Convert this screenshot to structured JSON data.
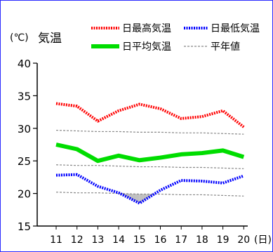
{
  "chart_data": {
    "type": "line",
    "ylabel_unit": "(℃)",
    "ylabel": "気温",
    "x": [
      "11",
      "12",
      "13",
      "14",
      "15",
      "16",
      "17",
      "18",
      "19",
      "20"
    ],
    "x_unit": "(日)",
    "ylim": [
      15,
      40
    ],
    "yticks": [
      "15",
      "20",
      "25",
      "30",
      "35",
      "40"
    ],
    "grid": false,
    "legend_position": "top",
    "series": [
      {
        "name": "日最高気温",
        "style": "dotted",
        "color": "#ff0000",
        "values": [
          33.8,
          33.4,
          31.1,
          32.7,
          33.7,
          33.0,
          31.5,
          31.8,
          32.7,
          30.2
        ]
      },
      {
        "name": "日最低気温",
        "style": "dotted",
        "color": "#0000ff",
        "values": [
          22.8,
          22.9,
          21.1,
          20.1,
          18.5,
          20.5,
          22.0,
          21.9,
          21.6,
          22.7
        ]
      },
      {
        "name": "日平均気温",
        "style": "solid",
        "color": "#00dd00",
        "values": [
          27.5,
          26.8,
          25.0,
          25.8,
          25.1,
          25.5,
          26.0,
          26.2,
          26.6,
          25.6
        ]
      },
      {
        "name": "平年値",
        "style": "dashed",
        "color": "#888888",
        "normal": true,
        "bands": [
          [
            29.7,
            29.6,
            29.5,
            29.5,
            29.4,
            29.4,
            29.3,
            29.3,
            29.2,
            29.1
          ],
          [
            24.4,
            24.3,
            24.3,
            24.2,
            24.1,
            24.1,
            24.0,
            24.0,
            23.9,
            23.8
          ],
          [
            20.2,
            20.1,
            20.1,
            20.0,
            19.9,
            19.9,
            19.8,
            19.8,
            19.7,
            19.6
          ]
        ]
      }
    ],
    "below_normal_fill": "#c0c0c0"
  }
}
